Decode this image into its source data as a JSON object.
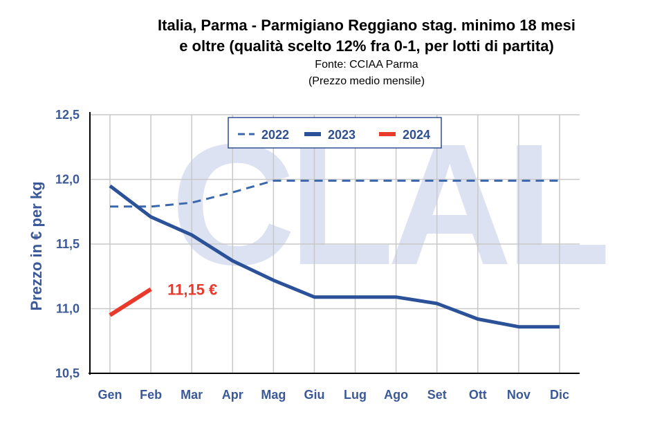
{
  "chart_data": {
    "type": "line",
    "title_line1": "Italia, Parma - Parmigiano Reggiano stag. minimo 18 mesi",
    "title_line2": "e oltre (qualità scelto 12% fra 0-1, per lotti di partita)",
    "source": "Fonte: CCIAA Parma",
    "note": "(Prezzo medio mensile)",
    "ylabel": "Prezzo in € per kg",
    "xlabel": "",
    "ylim": [
      10.5,
      12.5
    ],
    "y_ticks": [
      {
        "value": 10.5,
        "label": "10,5"
      },
      {
        "value": 11.0,
        "label": "11,0"
      },
      {
        "value": 11.5,
        "label": "11,5"
      },
      {
        "value": 12.0,
        "label": "12,0"
      },
      {
        "value": 12.5,
        "label": "12,5"
      }
    ],
    "categories": [
      "Gen",
      "Feb",
      "Mar",
      "Apr",
      "Mag",
      "Giu",
      "Lug",
      "Ago",
      "Set",
      "Ott",
      "Nov",
      "Dic"
    ],
    "series": [
      {
        "name": "2022",
        "style": "dashed",
        "color": "#3b67ad",
        "values": [
          11.79,
          11.79,
          11.82,
          11.9,
          11.99,
          11.99,
          11.99,
          11.99,
          11.99,
          11.99,
          11.99,
          11.99
        ]
      },
      {
        "name": "2023",
        "style": "solid",
        "color": "#2b5299",
        "values": [
          11.95,
          11.71,
          11.57,
          11.37,
          11.22,
          11.09,
          11.09,
          11.09,
          11.04,
          10.92,
          10.86,
          10.86
        ]
      },
      {
        "name": "2024",
        "style": "solid",
        "color": "#e8392b",
        "values": [
          10.95,
          11.15,
          null,
          null,
          null,
          null,
          null,
          null,
          null,
          null,
          null,
          null
        ]
      }
    ],
    "annotation": {
      "text": "11,15 €",
      "series": "2024",
      "category": "Feb",
      "value": 11.15
    },
    "watermark": "CLAL",
    "grid": true,
    "legend_position": "top-center"
  }
}
